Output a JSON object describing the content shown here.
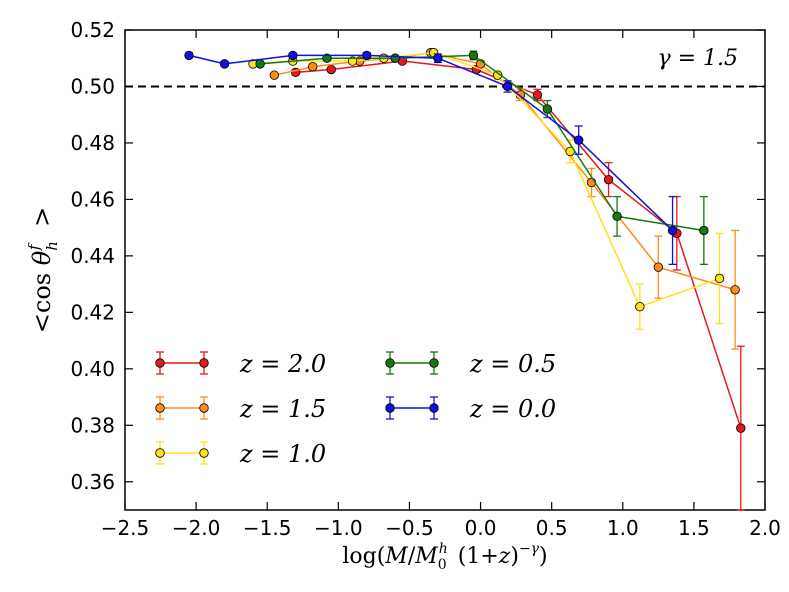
{
  "chart_data": {
    "type": "line",
    "title": "",
    "annotation": "γ = 1.5",
    "xlabel": "log(M/M_0^h (1+z)^-γ)",
    "ylabel": "< cos θ_h^f >",
    "xlim": [
      -2.5,
      2.0
    ],
    "ylim": [
      0.35,
      0.52
    ],
    "x_ticks": [
      -2.5,
      -2.0,
      -1.5,
      -1.0,
      -0.5,
      0.0,
      0.5,
      1.0,
      1.5,
      2.0
    ],
    "x_tick_labels": [
      "−2.5",
      "−2.0",
      "−1.5",
      "−1.0",
      "−0.5",
      "0.0",
      "0.5",
      "1.0",
      "1.5",
      "2.0"
    ],
    "y_ticks": [
      0.36,
      0.38,
      0.4,
      0.42,
      0.44,
      0.46,
      0.48,
      0.5,
      0.52
    ],
    "y_tick_labels": [
      "0.36",
      "0.38",
      "0.40",
      "0.42",
      "0.44",
      "0.46",
      "0.48",
      "0.50",
      "0.52"
    ],
    "reference_line": {
      "y": 0.5,
      "style": "dashed"
    },
    "legend_position": "lower-left",
    "series": [
      {
        "name": "z = 2.0",
        "legend_text": "z = 2.0",
        "color": "#e31a1c",
        "x": [
          -1.3,
          -1.05,
          -0.55,
          -0.03,
          0.4,
          0.9,
          1.38,
          1.83
        ],
        "y": [
          0.505,
          0.506,
          0.509,
          0.506,
          0.497,
          0.467,
          0.448,
          0.379
        ],
        "err": [
          0.0007,
          0.0007,
          0.0008,
          0.001,
          0.002,
          0.006,
          0.013,
          0.029
        ]
      },
      {
        "name": "z = 1.5",
        "legend_text": "z = 1.5",
        "color": "#ff8c1a",
        "x": [
          -1.45,
          -1.18,
          -0.85,
          -0.6,
          -0.35,
          0.0,
          0.28,
          0.78,
          1.25,
          1.79
        ],
        "y": [
          0.504,
          0.507,
          0.509,
          0.51,
          0.512,
          0.508,
          0.497,
          0.466,
          0.436,
          0.428
        ],
        "err": [
          0.0006,
          0.0006,
          0.0006,
          0.0007,
          0.0008,
          0.001,
          0.002,
          0.005,
          0.011,
          0.021
        ]
      },
      {
        "name": "z = 1.0",
        "legend_text": "z = 1.0",
        "color": "#ffe11a",
        "x": [
          -1.6,
          -1.32,
          -0.9,
          -0.68,
          -0.33,
          0.12,
          0.63,
          1.12,
          1.68
        ],
        "y": [
          0.508,
          0.509,
          0.509,
          0.51,
          0.512,
          0.504,
          0.477,
          0.422,
          0.432
        ],
        "err": [
          0.0006,
          0.0006,
          0.0006,
          0.0007,
          0.0008,
          0.0015,
          0.004,
          0.008,
          0.016
        ]
      },
      {
        "name": "z = 0.5",
        "legend_text": "z = 0.5",
        "color": "#117a11",
        "x": [
          -1.55,
          -1.08,
          -0.6,
          -0.05,
          0.47,
          0.96,
          1.57
        ],
        "y": [
          0.508,
          0.51,
          0.51,
          0.511,
          0.492,
          0.454,
          0.449
        ],
        "err": [
          0.0006,
          0.0006,
          0.0007,
          0.0015,
          0.003,
          0.007,
          0.012
        ]
      },
      {
        "name": "z = 0.0",
        "legend_text": "z = 0.0",
        "color": "#1010e0",
        "x": [
          -2.05,
          -1.8,
          -1.32,
          -0.8,
          -0.3,
          0.19,
          0.69,
          1.35
        ],
        "y": [
          0.511,
          0.508,
          0.511,
          0.511,
          0.51,
          0.5,
          0.481,
          0.449
        ],
        "err": [
          0.0008,
          0.0008,
          0.0008,
          0.001,
          0.0015,
          0.002,
          0.005,
          0.012
        ]
      }
    ]
  }
}
